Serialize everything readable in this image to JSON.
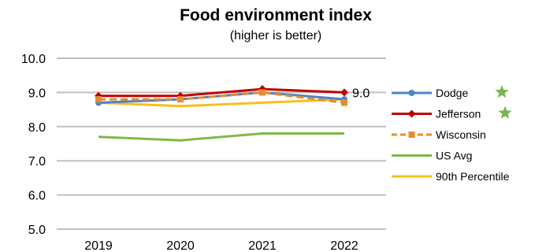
{
  "chart_data": {
    "type": "line",
    "title": "Food environment  index",
    "subtitle": "(higher is better)",
    "xlabel": "",
    "ylabel": "",
    "categories": [
      "2019",
      "2020",
      "2021",
      "2022"
    ],
    "ylim": [
      5.0,
      10.0
    ],
    "yticks": [
      "5.0",
      "6.0",
      "7.0",
      "8.0",
      "9.0",
      "10.0"
    ],
    "grid": true,
    "legend_position": "right",
    "series": [
      {
        "name": "Dodge",
        "values": [
          8.7,
          8.8,
          9.0,
          8.8
        ],
        "color": "#4a86c8",
        "marker": "circle",
        "dash": false,
        "star": true
      },
      {
        "name": "Jefferson",
        "values": [
          8.9,
          8.9,
          9.1,
          9.0
        ],
        "color": "#c00000",
        "marker": "diamond",
        "dash": false,
        "star": true
      },
      {
        "name": "Wisconsin",
        "values": [
          8.8,
          8.8,
          9.0,
          8.7
        ],
        "color": "#e98a2f",
        "marker": "square",
        "dash": true,
        "star": false
      },
      {
        "name": "US Avg",
        "values": [
          7.7,
          7.6,
          7.8,
          7.8
        ],
        "color": "#7fb84a",
        "marker": "none",
        "dash": false,
        "star": false
      },
      {
        "name": "90th Percentile",
        "values": [
          8.7,
          8.6,
          8.7,
          8.8
        ],
        "color": "#f5c11a",
        "marker": "none",
        "dash": false,
        "star": false
      }
    ],
    "annotations": [
      {
        "text": "9.0",
        "series": "Jefferson",
        "category": "2022"
      }
    ],
    "star_color": "#77b553"
  }
}
